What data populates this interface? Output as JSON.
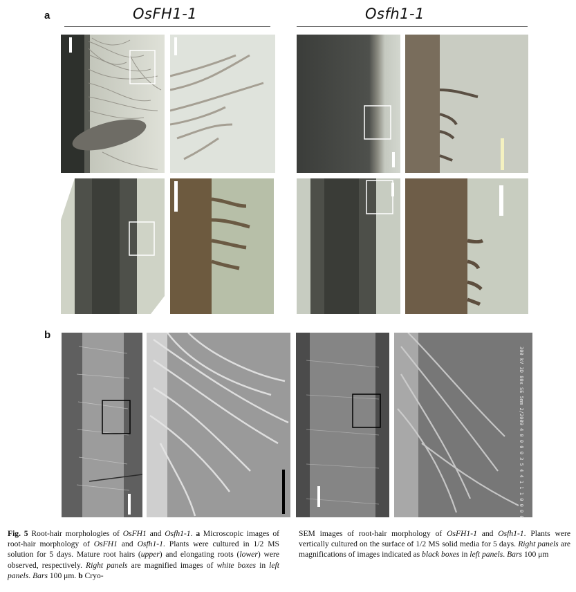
{
  "panel_a": {
    "letter": "a",
    "left_title": "OsFH1-1",
    "right_title": "Osfh1-1"
  },
  "panel_b": {
    "letter": "b"
  },
  "sem_info": "300 kV 3D 80x SE 5mm 2/2009 4 0 0 0 0 3 5 4 4 1 1 1 0 0 0 0",
  "caption_left": {
    "fig": "Fig. 5",
    "t1": " Root-hair morphologies of ",
    "g1": "OsFH1",
    "t2": " and ",
    "g2": "Osfh1-1",
    "t3": ". ",
    "a": "a",
    "t4": " Microscopic images of root-hair morphology of ",
    "g3": "OsFH1",
    "t5": " and ",
    "g4": "Osfh1-1",
    "t6": ". Plants were cultured in 1/2 MS solution for 5 days. Mature root hairs (",
    "upper": "upper",
    "t7": ") and elongating roots (",
    "lower": "lower",
    "t8": ") were observed, respectively. ",
    "rp": "Right panels",
    "t9": " are magnified images of ",
    "wb": "white boxes",
    "t10": " in ",
    "lp": "left panels",
    "t11": ". ",
    "bars": "Bars",
    "t12": " 100 μm. ",
    "b": "b",
    "t13": " Cryo-"
  },
  "caption_right": {
    "t1": "SEM images of root-hair morphology of ",
    "g1": "OsFH1-1",
    "t2": " and ",
    "g2": "Osfh1-1",
    "t3": ". Plants were vertically cultured on the surface of 1/2 MS solid media for 5 days. ",
    "rp": "Right panels",
    "t4": " are magnifications of images indicated as ",
    "bb": "black boxes",
    "t5": " in ",
    "lp": "left panels",
    "t6": ". ",
    "bars": "Bars",
    "t7": " 100 μm"
  }
}
